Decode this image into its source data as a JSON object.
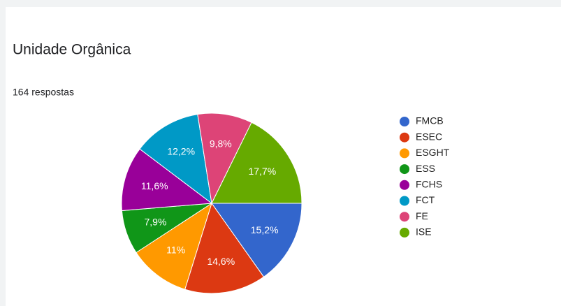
{
  "chart_data": {
    "type": "pie",
    "title": "Unidade Orgânica",
    "subtitle": "164 respostas",
    "categories": [
      "FMCB",
      "ESEC",
      "ESGHT",
      "ESS",
      "FCHS",
      "FCT",
      "FE",
      "ISE"
    ],
    "values": [
      15.2,
      14.6,
      11,
      7.9,
      11.6,
      12.2,
      9.8,
      17.7
    ],
    "value_labels": [
      "15,2%",
      "14,6%",
      "11%",
      "7,9%",
      "11,6%",
      "12,2%",
      "9,8%",
      "17,7%"
    ],
    "colors": [
      "#3366cc",
      "#dc3912",
      "#ff9900",
      "#109618",
      "#990099",
      "#0099c6",
      "#dd4477",
      "#66aa00"
    ],
    "legend": "right"
  }
}
